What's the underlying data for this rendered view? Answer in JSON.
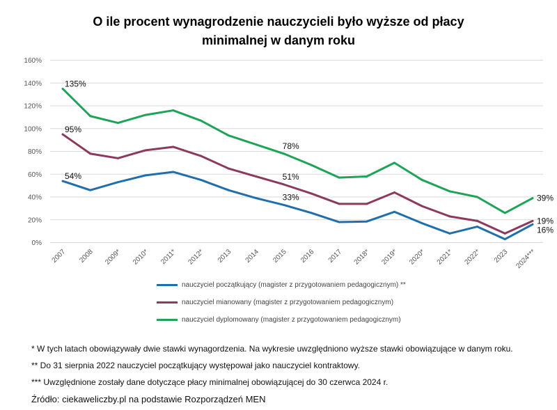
{
  "chart_data": {
    "type": "line",
    "title": "O ile procent wynagrodzenie nauczycieli było wyższe od płacy minimalnej w danym roku",
    "categories": [
      "2007",
      "2008",
      "2009*",
      "2010*",
      "2011*",
      "2012*",
      "2013",
      "2014",
      "2015",
      "2016",
      "2017",
      "2018*",
      "2019*",
      "2020*",
      "2021*",
      "2022*",
      "2023",
      "2024***"
    ],
    "ylim": [
      0,
      160
    ],
    "yticks": [
      "0%",
      "20%",
      "40%",
      "60%",
      "80%",
      "100%",
      "120%",
      "140%",
      "160%"
    ],
    "grid": true,
    "legend_position": "bottom",
    "series": [
      {
        "name": "nauczyciel początkujący (magister z przygotowaniem pedagogicznym) **",
        "color": "#1f6fad",
        "values": [
          54,
          46,
          53,
          59,
          62,
          55,
          46,
          39,
          33,
          26,
          18,
          18.5,
          27,
          17,
          8,
          14,
          3,
          16
        ],
        "labels": [
          {
            "index": 0,
            "text": "54%"
          },
          {
            "index": 8,
            "text": "33%"
          },
          {
            "index": 17,
            "text": "16%"
          }
        ]
      },
      {
        "name": "nauczyciel mianowany (magister z przygotowaniem pedagogicznym)",
        "color": "#8b3a5e",
        "values": [
          95,
          78,
          74,
          81,
          84,
          76,
          65,
          58,
          51,
          43,
          34,
          34,
          44,
          32,
          23,
          19,
          8,
          19
        ],
        "labels": [
          {
            "index": 0,
            "text": "95%"
          },
          {
            "index": 8,
            "text": "51%"
          },
          {
            "index": 17,
            "text": "19%"
          }
        ]
      },
      {
        "name": "nauczyciel dyplomowany (magister z przygotowaniem pedagogicznym)",
        "color": "#1ea456",
        "values": [
          135,
          111,
          105,
          112,
          116,
          107,
          94,
          86,
          78,
          68,
          57,
          58,
          70,
          55,
          45,
          40,
          26,
          39
        ],
        "labels": [
          {
            "index": 0,
            "text": "135%"
          },
          {
            "index": 8,
            "text": "78%"
          },
          {
            "index": 17,
            "text": "39%"
          }
        ]
      }
    ]
  },
  "notes": [
    "* W tych latach obowiązywały dwie stawki wynagordzenia. Na wykresie uwzględniono wyższe stawki obowiązujące w danym roku.",
    "** Do 31 sierpnia 2022 nauczyciel początkujący występował jako nauczyciel kontraktowy.",
    "*** Uwzględnione zostały dane dotyczące płacy minimalnej obowiązującej do 30 czerwca 2024 r.",
    "Źródło: ciekaweliczby.pl na podstawie Rozporządzeń MEN"
  ]
}
